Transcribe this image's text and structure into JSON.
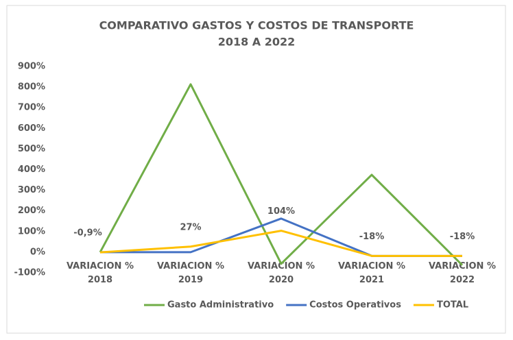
{
  "chart_data": {
    "type": "line",
    "title": "COMPARATIVO GASTOS Y COSTOS DE TRANSPORTE",
    "subtitle": "2018 A 2022",
    "categories": [
      "VARIACION %\n2018",
      "VARIACION %\n2019",
      "VARIACION %\n2020",
      "VARIACION %\n2021",
      "VARIACION %\n2022"
    ],
    "series": [
      {
        "name": "Gasto Administrativo",
        "color": "#70ad47",
        "values": [
          0,
          814,
          -56,
          375,
          -63
        ]
      },
      {
        "name": "Costos Operativos",
        "color": "#4472c4",
        "values": [
          0,
          0,
          163,
          -18,
          -18
        ]
      },
      {
        "name": "TOTAL",
        "color": "#ffc000",
        "values": [
          -0.9,
          27,
          104,
          -18,
          -18
        ],
        "value_labels": [
          "-0,9%",
          "27%",
          "104%",
          "-18%",
          "-18%"
        ]
      }
    ],
    "ylim": [
      -100,
      900
    ],
    "yticks": [
      {
        "value": -100,
        "label": "-100%"
      },
      {
        "value": 0,
        "label": "0%"
      },
      {
        "value": 100,
        "label": "100%"
      },
      {
        "value": 200,
        "label": "200%"
      },
      {
        "value": 300,
        "label": "300%"
      },
      {
        "value": 400,
        "label": "400%"
      },
      {
        "value": 500,
        "label": "500%"
      },
      {
        "value": 600,
        "label": "600%"
      },
      {
        "value": 700,
        "label": "700%"
      },
      {
        "value": 800,
        "label": "800%"
      },
      {
        "value": 900,
        "label": "900%"
      }
    ],
    "legend": "bottom"
  }
}
